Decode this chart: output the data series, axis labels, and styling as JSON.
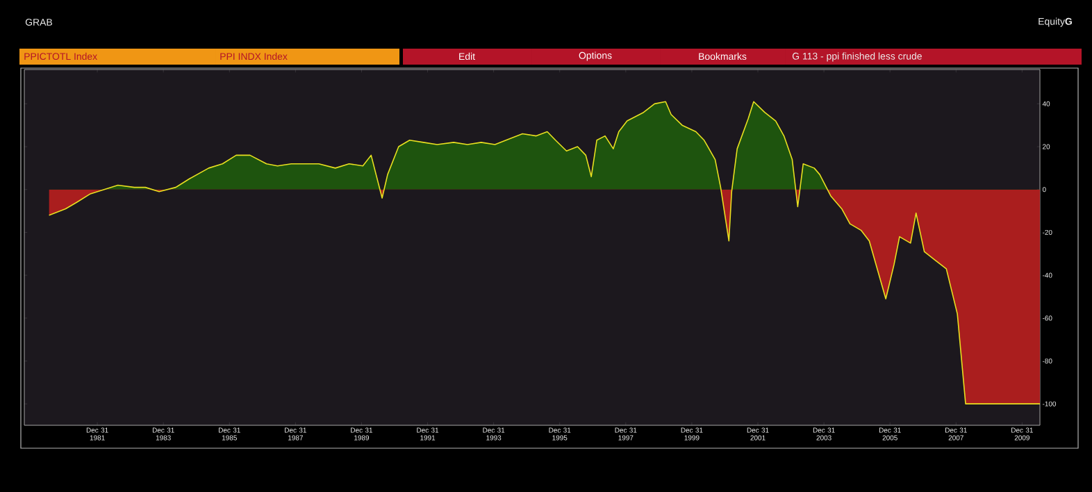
{
  "chart_data": {
    "type": "area",
    "title": "G 113 - ppi finished less crude",
    "annotations": [
      "GRAB",
      "Equity**G**",
      "PPICTOTL Index",
      "PPI INDX Index",
      "Edit",
      "Options",
      "Bookmarks"
    ],
    "series": [
      {
        "color": "#e8e020",
        "x": [
          "1980-07",
          "1981-01",
          "1981-05",
          "1981-10",
          "1982-03",
          "1982-08",
          "1983-02",
          "1983-06",
          "1983-11",
          "1984-05",
          "1984-10",
          "1985-05",
          "1985-10",
          "1986-03",
          "1986-08",
          "1987-02",
          "1987-06",
          "1987-11",
          "1988-04",
          "1988-09",
          "1989-03",
          "1989-08",
          "1990-01",
          "1990-04",
          "1990-08",
          "1990-10",
          "1991-02",
          "1991-06",
          "1991-11",
          "1992-04",
          "1992-10",
          "1993-03",
          "1993-08",
          "1994-01",
          "1994-05",
          "1994-11",
          "1995-04",
          "1995-08",
          "1995-11",
          "1996-03",
          "1996-07",
          "1996-10",
          "1996-12",
          "1997-02",
          "1997-05",
          "1997-08",
          "1997-10",
          "1998-01",
          "1998-07",
          "1998-11",
          "1999-03",
          "1999-05",
          "1999-09",
          "2000-02",
          "2000-05",
          "2000-09",
          "2000-11",
          "2001-02",
          "2001-03",
          "2001-05",
          "2001-09",
          "2001-11",
          "2002-03",
          "2002-07",
          "2002-10",
          "2003-01",
          "2003-03",
          "2003-05",
          "2003-09",
          "2003-11",
          "2004-03",
          "2004-07",
          "2004-10",
          "2005-02",
          "2005-05",
          "2005-09",
          "2005-11",
          "2006-02",
          "2006-04",
          "2006-08",
          "2006-10",
          "2007-01",
          "2007-05",
          "2007-09",
          "2008-01",
          "2008-04",
          "2009-06",
          "2010-07"
        ],
        "values": [
          -12,
          -9,
          -6,
          -2,
          0,
          2,
          1,
          1,
          -1,
          1,
          5,
          10,
          12,
          16,
          16,
          12,
          11,
          12,
          12,
          12,
          10,
          12,
          11,
          16,
          -4,
          7,
          20,
          23,
          22,
          21,
          22,
          21,
          22,
          21,
          23,
          26,
          25,
          27,
          23,
          18,
          20,
          16,
          6,
          23,
          25,
          19,
          27,
          32,
          36,
          40,
          41,
          35,
          30,
          27,
          23,
          14,
          1,
          -24,
          -1,
          19,
          33,
          41,
          36,
          32,
          25,
          14,
          -8,
          12,
          10,
          7,
          -3,
          -9,
          -16,
          -19,
          -24,
          -42,
          -51,
          -35,
          -22,
          -25,
          -11,
          -29,
          -33,
          -37,
          -58,
          -100,
          -100,
          -100
        ]
      }
    ],
    "xlim": [
      "1979-10",
      "2010-07"
    ],
    "ylim": [
      -110,
      56
    ],
    "xticks": [
      {
        "value": "1981-12-31",
        "label": "Dec 31 1981"
      },
      {
        "value": "1983-12-31",
        "label": "Dec 31 1983"
      },
      {
        "value": "1985-12-31",
        "label": "Dec 31 1985"
      },
      {
        "value": "1987-12-31",
        "label": "Dec 31 1987"
      },
      {
        "value": "1989-12-31",
        "label": "Dec 31 1989"
      },
      {
        "value": "1991-12-31",
        "label": "Dec 31 1991"
      },
      {
        "value": "1993-12-31",
        "label": "Dec 31 1993"
      },
      {
        "value": "1995-12-31",
        "label": "Dec 31 1995"
      },
      {
        "value": "1997-12-31",
        "label": "Dec 31 1997"
      },
      {
        "value": "1999-12-31",
        "label": "Dec 31 1999"
      },
      {
        "value": "2001-12-31",
        "label": "Dec 31 2001"
      },
      {
        "value": "2003-12-31",
        "label": "Dec 31 2003"
      },
      {
        "value": "2005-12-31",
        "label": "Dec 31 2005"
      },
      {
        "value": "2007-12-31",
        "label": "Dec 31 2007"
      },
      {
        "value": "2009-12-31",
        "label": "Dec 31 2009"
      }
    ],
    "yticks": [
      40,
      20,
      0,
      -20,
      -40,
      -60,
      -80,
      -100
    ]
  }
}
